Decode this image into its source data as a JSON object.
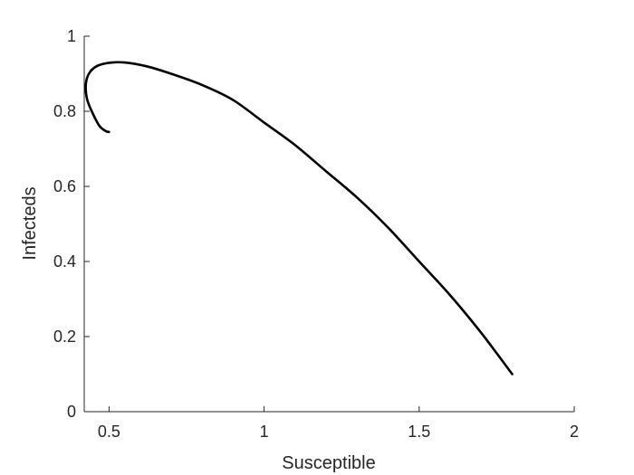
{
  "chart_data": {
    "type": "line",
    "title": "",
    "xlabel": "Susceptible",
    "ylabel": "Infecteds",
    "xlim": [
      0.42,
      2.0
    ],
    "ylim": [
      0,
      1.0
    ],
    "xticks": [
      0.5,
      1,
      1.5,
      2
    ],
    "yticks": [
      0,
      0.2,
      0.4,
      0.6,
      0.8,
      1
    ],
    "xtick_labels": [
      "0.5",
      "1",
      "1.5",
      "2"
    ],
    "ytick_labels": [
      "0",
      "0.2",
      "0.4",
      "0.6",
      "0.8",
      "1"
    ],
    "grid": false,
    "legend": "none",
    "series": [
      {
        "color": "#000000",
        "x": [
          1.8,
          1.7,
          1.6,
          1.5,
          1.4,
          1.3,
          1.2,
          1.1,
          1.0,
          0.9,
          0.8,
          0.7,
          0.62,
          0.55,
          0.5,
          0.46,
          0.435,
          0.425,
          0.43,
          0.45,
          0.47,
          0.49,
          0.5
        ],
        "y": [
          0.1,
          0.21,
          0.31,
          0.4,
          0.49,
          0.57,
          0.64,
          0.71,
          0.77,
          0.83,
          0.87,
          0.9,
          0.92,
          0.93,
          0.929,
          0.92,
          0.9,
          0.87,
          0.83,
          0.79,
          0.76,
          0.747,
          0.745
        ]
      }
    ]
  }
}
